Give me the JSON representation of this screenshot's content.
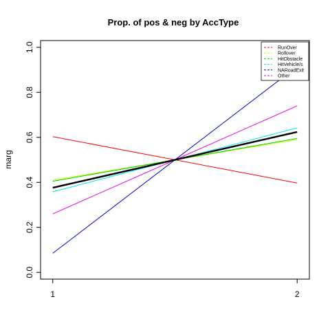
{
  "chart_data": {
    "type": "line",
    "title": "Prop. of pos & neg by AccType",
    "xlabel": "",
    "ylabel": "marg",
    "x": [
      1,
      2
    ],
    "xlim": [
      0.95,
      2.05
    ],
    "ylim": [
      -0.03,
      1.03
    ],
    "x_ticks": [
      "1",
      "2"
    ],
    "y_ticks": [
      "0.0",
      "0.2",
      "0.4",
      "0.6",
      "0.8",
      "1.0"
    ],
    "legend_position": "top-right",
    "grid": false,
    "series": [
      {
        "name": "RunOver",
        "color": "#ff0000",
        "values": [
          0.603,
          0.397
        ]
      },
      {
        "name": "Rollover",
        "color": "#ccff00",
        "values": [
          0.41,
          0.59
        ]
      },
      {
        "name": "HitObstacle",
        "color": "#00cc00",
        "values": [
          0.405,
          0.595
        ]
      },
      {
        "name": "HitVehicle/s",
        "color": "#00e5e5",
        "values": [
          0.358,
          0.642
        ]
      },
      {
        "name": "NARoadExit",
        "color": "#0000cc",
        "values": [
          0.085,
          0.915
        ]
      },
      {
        "name": "Other",
        "color": "#e500e5",
        "values": [
          0.26,
          0.74
        ]
      }
    ],
    "overall": {
      "color": "#000000",
      "values": [
        0.376,
        0.624
      ]
    }
  }
}
